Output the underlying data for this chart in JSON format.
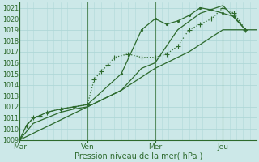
{
  "background_color": "#cce8e8",
  "grid_color": "#b0d8d8",
  "line_color": "#2d6a2d",
  "marker_color": "#2d6a2d",
  "xlabel": "Pression niveau de la mer( hPa )",
  "ylim": [
    1009,
    1021.5
  ],
  "yticks": [
    1009,
    1010,
    1011,
    1012,
    1013,
    1014,
    1015,
    1016,
    1017,
    1018,
    1019,
    1020,
    1021
  ],
  "xtick_labels": [
    "Mar",
    "Ven",
    "Mer",
    "Jeu"
  ],
  "xtick_positions": [
    0,
    30,
    60,
    90
  ],
  "xlim": [
    0,
    105
  ],
  "vlines_x": [
    0,
    30,
    60,
    90
  ],
  "series": [
    {
      "x": [
        0,
        3,
        6,
        9,
        12,
        18,
        24,
        30,
        33,
        36,
        39,
        42,
        48,
        54,
        60,
        65,
        70,
        75,
        80,
        85,
        90,
        95,
        100
      ],
      "y": [
        1009,
        1010.3,
        1011,
        1011.2,
        1011.5,
        1011.8,
        1012,
        1012.2,
        1014.5,
        1015.2,
        1015.8,
        1016.5,
        1016.8,
        1016.5,
        1016.5,
        1016.8,
        1017.5,
        1019,
        1019.5,
        1020,
        1021,
        1020.5,
        1019
      ],
      "style": "dotted",
      "marker": "+"
    },
    {
      "x": [
        0,
        3,
        6,
        9,
        12,
        18,
        24,
        30,
        45,
        54,
        60,
        65,
        70,
        75,
        80,
        85,
        90,
        95,
        100
      ],
      "y": [
        1009,
        1010.3,
        1011,
        1011.2,
        1011.5,
        1011.8,
        1012,
        1012.2,
        1015,
        1019,
        1020,
        1019.5,
        1019.8,
        1020.3,
        1021,
        1020.8,
        1020.5,
        1020.2,
        1019
      ],
      "style": "solid",
      "marker": "."
    },
    {
      "x": [
        0,
        6,
        12,
        18,
        24,
        30,
        45,
        54,
        60,
        70,
        80,
        90,
        100
      ],
      "y": [
        1009,
        1010.5,
        1011,
        1011.5,
        1011.8,
        1012,
        1013.5,
        1015.5,
        1016,
        1019,
        1020.5,
        1021.2,
        1019
      ],
      "style": "solid",
      "marker": null
    },
    {
      "x": [
        0,
        15,
        30,
        45,
        60,
        75,
        90,
        105
      ],
      "y": [
        1009,
        1010.5,
        1012,
        1013.5,
        1015.5,
        1017,
        1019,
        1019
      ],
      "style": "solid",
      "marker": null
    }
  ]
}
